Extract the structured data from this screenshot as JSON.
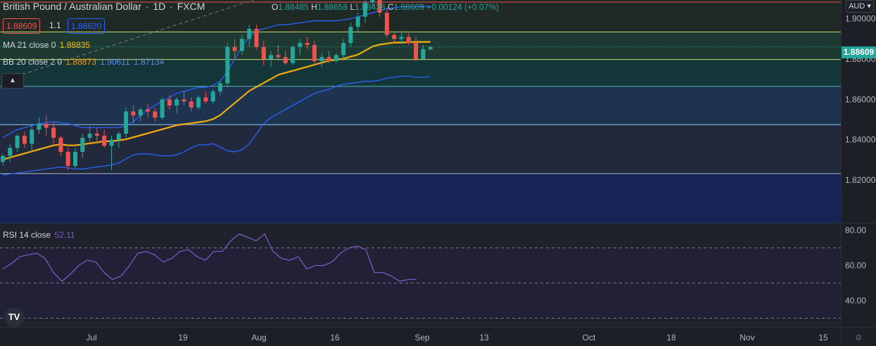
{
  "header": {
    "symbol": "British Pound / Australian Dollar",
    "interval": "1D",
    "exchange": "FXCM",
    "ohlc": {
      "o_label": "O",
      "o": "1.88485",
      "h_label": "H",
      "h": "1.88658",
      "l_label": "L",
      "l": "1.88438",
      "c_label": "C",
      "c": "1.88609",
      "change": "+0.00124 (+0.07%)"
    },
    "sell_price": "1.88609",
    "spread": "1.1",
    "buy_price": "1.88620"
  },
  "indicators": {
    "ma": {
      "label": "MA 21 close 0",
      "value": "1.88835",
      "color": "#f0c419"
    },
    "bb": {
      "label": "BB 20 close 2 0",
      "basis": "1.88873",
      "upper": "1.90611",
      "lower": "1.87134",
      "basis_color": "#ff9800",
      "band_color": "#2962ff"
    },
    "rsi": {
      "label": "RSI 14 close",
      "value": "52.11",
      "color": "#7e57c2"
    }
  },
  "price_axis": {
    "currency": "AUD",
    "ticks": [
      "1.90000",
      "1.88000",
      "1.86000",
      "1.84000",
      "1.82000"
    ],
    "last_price": "1.88609"
  },
  "rsi_axis": {
    "ticks": [
      "80.00",
      "60.00",
      "40.00"
    ]
  },
  "time_axis": {
    "labels": [
      "Jul",
      "19",
      "Aug",
      "16",
      "Sep",
      "13",
      "Oct",
      "18",
      "Nov",
      "15"
    ]
  },
  "logo_text": "TV",
  "colors": {
    "up": "#26a69a",
    "down": "#ef5350",
    "background": "#1c1f26"
  },
  "chart_data": {
    "type": "candlestick",
    "title": "British Pound / Australian Dollar, 1D, FXCM",
    "ylim": [
      1.8,
      1.915
    ],
    "horizontal_levels": [
      1.8935,
      1.8798,
      1.8665,
      1.8475,
      1.8232
    ],
    "trendline": [
      [
        1,
        1.8705
      ],
      [
        40,
        1.9155
      ]
    ],
    "candles": [
      [
        1.829,
        1.833,
        1.827,
        1.832
      ],
      [
        1.832,
        1.838,
        1.829,
        1.836
      ],
      [
        1.836,
        1.843,
        1.834,
        1.842
      ],
      [
        1.842,
        1.844,
        1.836,
        1.838
      ],
      [
        1.838,
        1.847,
        1.834,
        1.845
      ],
      [
        1.845,
        1.851,
        1.843,
        1.848
      ],
      [
        1.848,
        1.852,
        1.842,
        1.846
      ],
      [
        1.846,
        1.849,
        1.838,
        1.841
      ],
      [
        1.841,
        1.842,
        1.832,
        1.834
      ],
      [
        1.834,
        1.836,
        1.825,
        1.827
      ],
      [
        1.827,
        1.836,
        1.826,
        1.834
      ],
      [
        1.834,
        1.843,
        1.831,
        1.841
      ],
      [
        1.841,
        1.847,
        1.839,
        1.843
      ],
      [
        1.843,
        1.846,
        1.838,
        1.842
      ],
      [
        1.842,
        1.845,
        1.836,
        1.837
      ],
      [
        1.837,
        1.842,
        1.825,
        1.84
      ],
      [
        1.84,
        1.844,
        1.836,
        1.843
      ],
      [
        1.843,
        1.856,
        1.841,
        1.854
      ],
      [
        1.854,
        1.857,
        1.848,
        1.852
      ],
      [
        1.852,
        1.856,
        1.849,
        1.855
      ],
      [
        1.855,
        1.858,
        1.851,
        1.854
      ],
      [
        1.854,
        1.856,
        1.849,
        1.851
      ],
      [
        1.851,
        1.861,
        1.85,
        1.86
      ],
      [
        1.86,
        1.862,
        1.855,
        1.857
      ],
      [
        1.857,
        1.861,
        1.853,
        1.86
      ],
      [
        1.86,
        1.864,
        1.857,
        1.859
      ],
      [
        1.859,
        1.861,
        1.854,
        1.856
      ],
      [
        1.856,
        1.862,
        1.855,
        1.861
      ],
      [
        1.861,
        1.864,
        1.858,
        1.859
      ],
      [
        1.859,
        1.865,
        1.858,
        1.864
      ],
      [
        1.864,
        1.869,
        1.862,
        1.868
      ],
      [
        1.868,
        1.888,
        1.866,
        1.886
      ],
      [
        1.886,
        1.89,
        1.88,
        1.884
      ],
      [
        1.884,
        1.892,
        1.882,
        1.89
      ],
      [
        1.89,
        1.897,
        1.886,
        1.895
      ],
      [
        1.895,
        1.897,
        1.885,
        1.886
      ],
      [
        1.886,
        1.889,
        1.877,
        1.88
      ],
      [
        1.88,
        1.884,
        1.876,
        1.882
      ],
      [
        1.882,
        1.887,
        1.879,
        1.881
      ],
      [
        1.881,
        1.884,
        1.877,
        1.878
      ],
      [
        1.878,
        1.887,
        1.877,
        1.886
      ],
      [
        1.886,
        1.89,
        1.882,
        1.888
      ],
      [
        1.888,
        1.891,
        1.885,
        1.887
      ],
      [
        1.887,
        1.889,
        1.877,
        1.879
      ],
      [
        1.879,
        1.883,
        1.876,
        1.881
      ],
      [
        1.881,
        1.884,
        1.878,
        1.879
      ],
      [
        1.879,
        1.883,
        1.878,
        1.882
      ],
      [
        1.882,
        1.89,
        1.879,
        1.888
      ],
      [
        1.888,
        1.898,
        1.886,
        1.896
      ],
      [
        1.896,
        1.903,
        1.893,
        1.901
      ],
      [
        1.901,
        1.911,
        1.898,
        1.908
      ],
      [
        1.908,
        1.913,
        1.906,
        1.911
      ],
      [
        1.911,
        1.912,
        1.901,
        1.903
      ],
      [
        1.903,
        1.905,
        1.891,
        1.892
      ],
      [
        1.892,
        1.893,
        1.888,
        1.89
      ],
      [
        1.89,
        1.893,
        1.888,
        1.891
      ],
      [
        1.891,
        1.893,
        1.887,
        1.888
      ],
      [
        1.888,
        1.891,
        1.879,
        1.88
      ],
      [
        1.88,
        1.887,
        1.88,
        1.885
      ],
      [
        1.8848,
        1.8866,
        1.8844,
        1.8861
      ]
    ],
    "ma21": [
      1.83,
      1.831,
      1.832,
      1.833,
      1.834,
      1.835,
      1.836,
      1.837,
      1.8375,
      1.837,
      1.837,
      1.8375,
      1.838,
      1.8385,
      1.839,
      1.839,
      1.8395,
      1.84,
      1.841,
      1.842,
      1.843,
      1.844,
      1.845,
      1.846,
      1.847,
      1.8475,
      1.848,
      1.8485,
      1.849,
      1.85,
      1.852,
      1.855,
      1.858,
      1.861,
      1.864,
      1.866,
      1.868,
      1.87,
      1.872,
      1.873,
      1.874,
      1.875,
      1.876,
      1.877,
      1.878,
      1.879,
      1.8795,
      1.88,
      1.881,
      1.882,
      1.884,
      1.886,
      1.887,
      1.8875,
      1.888,
      1.888,
      1.8882,
      1.8883,
      1.8883,
      1.88835
    ],
    "bb_upper": [
      1.841,
      1.843,
      1.845,
      1.846,
      1.847,
      1.848,
      1.8485,
      1.849,
      1.8485,
      1.848,
      1.847,
      1.846,
      1.846,
      1.846,
      1.846,
      1.846,
      1.846,
      1.847,
      1.849,
      1.852,
      1.855,
      1.857,
      1.859,
      1.861,
      1.863,
      1.864,
      1.865,
      1.866,
      1.866,
      1.867,
      1.869,
      1.874,
      1.88,
      1.886,
      1.891,
      1.894,
      1.895,
      1.896,
      1.897,
      1.897,
      1.8975,
      1.898,
      1.8985,
      1.899,
      1.899,
      1.899,
      1.899,
      1.8995,
      1.9,
      1.901,
      1.902,
      1.903,
      1.904,
      1.905,
      1.9055,
      1.906,
      1.906,
      1.906,
      1.9061,
      1.90611
    ],
    "bb_lower": [
      1.8225,
      1.823,
      1.8235,
      1.824,
      1.8245,
      1.825,
      1.8255,
      1.826,
      1.8265,
      1.826,
      1.8255,
      1.8255,
      1.826,
      1.8265,
      1.827,
      1.8275,
      1.8285,
      1.8305,
      1.8325,
      1.833,
      1.833,
      1.8325,
      1.832,
      1.832,
      1.8325,
      1.834,
      1.836,
      1.8375,
      1.8375,
      1.838,
      1.8365,
      1.8345,
      1.834,
      1.835,
      1.838,
      1.843,
      1.848,
      1.851,
      1.853,
      1.855,
      1.857,
      1.859,
      1.861,
      1.863,
      1.864,
      1.865,
      1.8665,
      1.8675,
      1.868,
      1.8685,
      1.869,
      1.869,
      1.8695,
      1.8705,
      1.871,
      1.8715,
      1.8715,
      1.871,
      1.871,
      1.87134
    ],
    "rsi14": [
      58,
      61,
      65,
      66,
      67,
      64,
      56,
      51,
      55,
      60,
      63,
      62,
      56,
      52,
      54,
      60,
      67,
      68,
      66,
      62,
      64,
      68,
      69,
      65,
      63,
      68,
      68,
      74,
      78,
      76,
      74,
      78,
      68,
      64,
      63,
      65,
      58,
      60,
      60,
      62,
      67,
      70,
      71,
      69,
      56,
      56,
      54,
      51,
      52,
      52.11
    ],
    "rsi_ylim": [
      30,
      82
    ],
    "rsi_levels": [
      70,
      50,
      30
    ]
  }
}
